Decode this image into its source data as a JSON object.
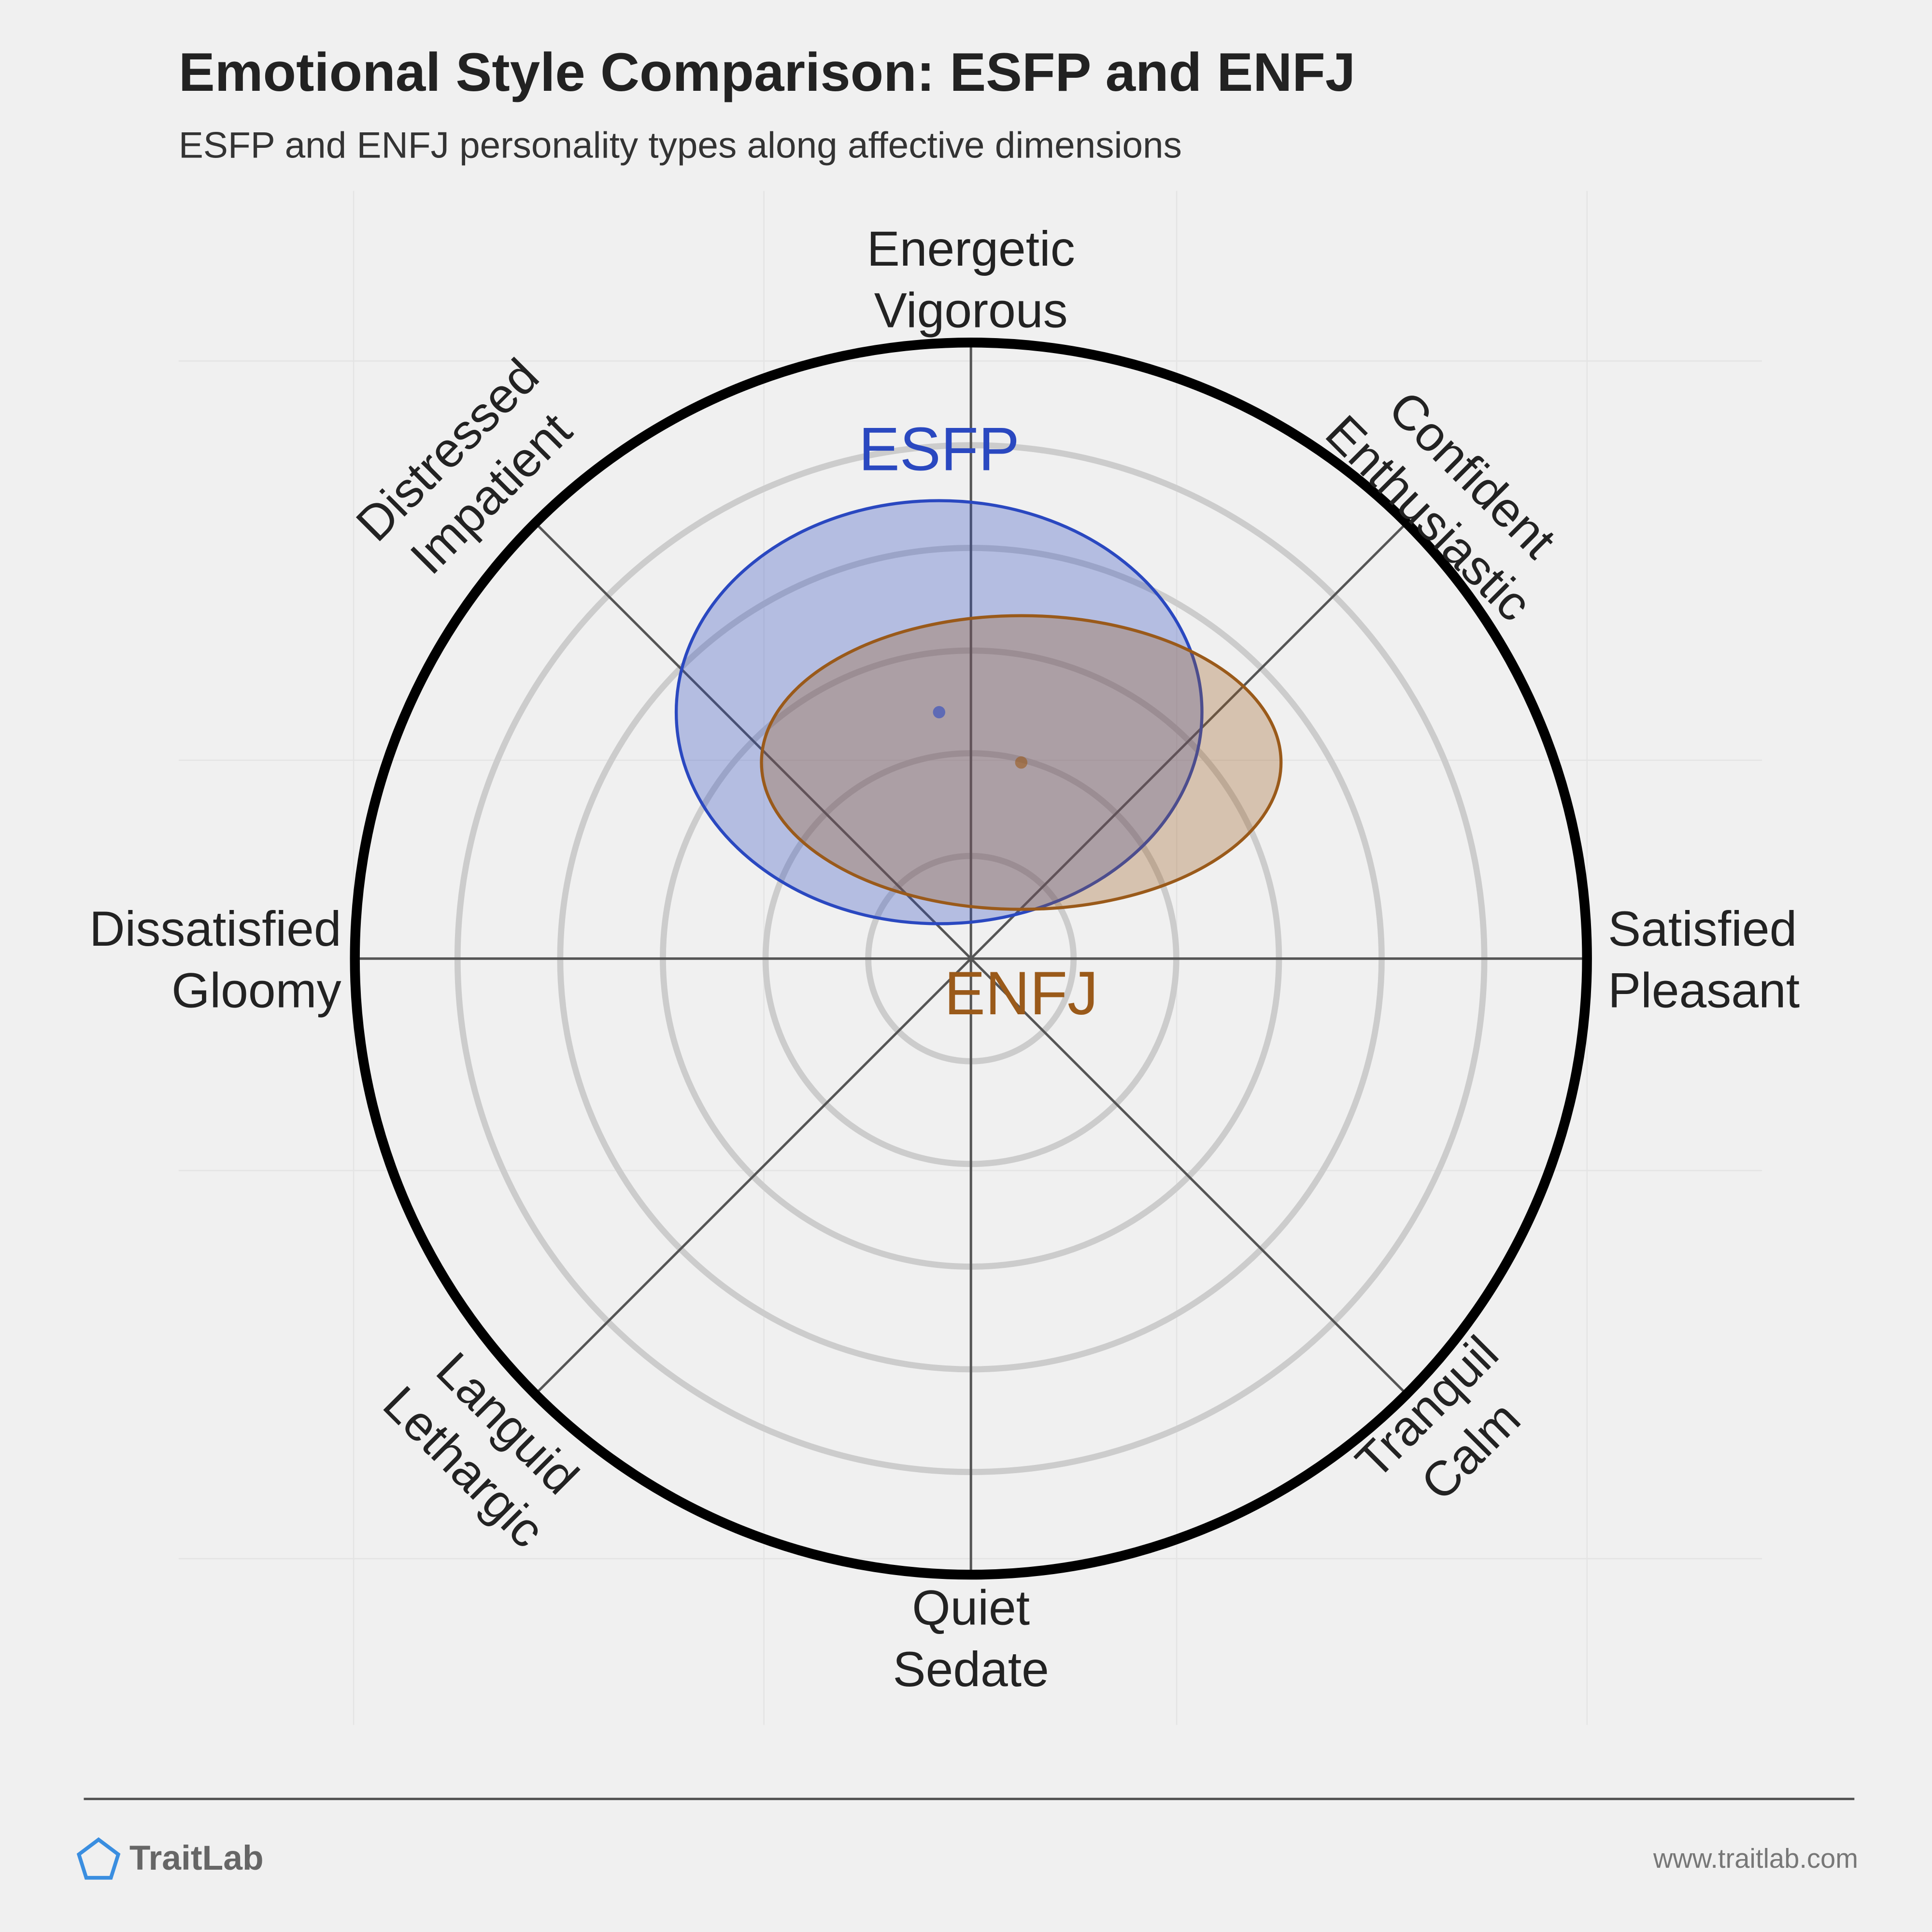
{
  "chart_data": {
    "type": "circumplex",
    "title": "Emotional Style Comparison: ESFP and ENFJ",
    "subtitle": "ESFP and ENFJ personality types along affective dimensions",
    "axis_labels": [
      [
        "Energetic",
        "Vigorous"
      ],
      [
        "Confident",
        "Enthusiastic"
      ],
      [
        "Satisfied",
        "Pleasant"
      ],
      [
        "Tranquil",
        "Calm"
      ],
      [
        "Quiet",
        "Sedate"
      ],
      [
        "Languid",
        "Lethargic"
      ],
      [
        "Dissatisfied",
        "Gloomy"
      ],
      [
        "Distressed",
        "Impatient"
      ]
    ],
    "rlim": [
      0,
      6
    ],
    "rticks": [
      1,
      2,
      3,
      4,
      5
    ],
    "series": [
      {
        "name": "ESFP",
        "color": "#2a48c0",
        "x": -0.31,
        "y": 2.4,
        "rx": 2.56,
        "ry": 2.06
      },
      {
        "name": "ENFJ",
        "color": "#9a5a1a",
        "x": 0.49,
        "y": 1.91,
        "rx": 2.53,
        "ry": 1.43
      }
    ]
  },
  "footer": {
    "brand": "TraitLab",
    "url": "www.traitlab.com"
  }
}
